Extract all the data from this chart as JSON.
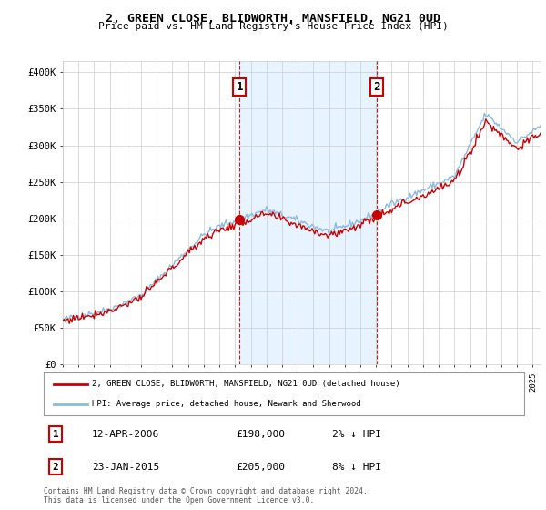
{
  "title": "2, GREEN CLOSE, BLIDWORTH, MANSFIELD, NG21 0UD",
  "subtitle": "Price paid vs. HM Land Registry's House Price Index (HPI)",
  "ylabel_ticks": [
    "£0",
    "£50K",
    "£100K",
    "£150K",
    "£200K",
    "£250K",
    "£300K",
    "£350K",
    "£400K"
  ],
  "ytick_values": [
    0,
    50000,
    100000,
    150000,
    200000,
    250000,
    300000,
    350000,
    400000
  ],
  "ylim": [
    0,
    415000
  ],
  "xlim_start": 1995.0,
  "xlim_end": 2025.5,
  "sale1_x": 2006.28,
  "sale1_y": 198000,
  "sale1_label": "1",
  "sale1_date": "12-APR-2006",
  "sale1_price": "£198,000",
  "sale1_hpi": "2% ↓ HPI",
  "sale2_x": 2015.06,
  "sale2_y": 205000,
  "sale2_label": "2",
  "sale2_date": "23-JAN-2015",
  "sale2_price": "£205,000",
  "sale2_hpi": "8% ↓ HPI",
  "legend_line1": "2, GREEN CLOSE, BLIDWORTH, MANSFIELD, NG21 0UD (detached house)",
  "legend_line2": "HPI: Average price, detached house, Newark and Sherwood",
  "footer": "Contains HM Land Registry data © Crown copyright and database right 2024.\nThis data is licensed under the Open Government Licence v3.0.",
  "line_color_property": "#cc0000",
  "line_color_hpi": "#88bbdd",
  "background_plot": "#ffffff",
  "background_highlight": "#ddeeff",
  "background_fig": "#ffffff",
  "grid_color": "#cccccc",
  "annotation_box_color": "#cc0000"
}
